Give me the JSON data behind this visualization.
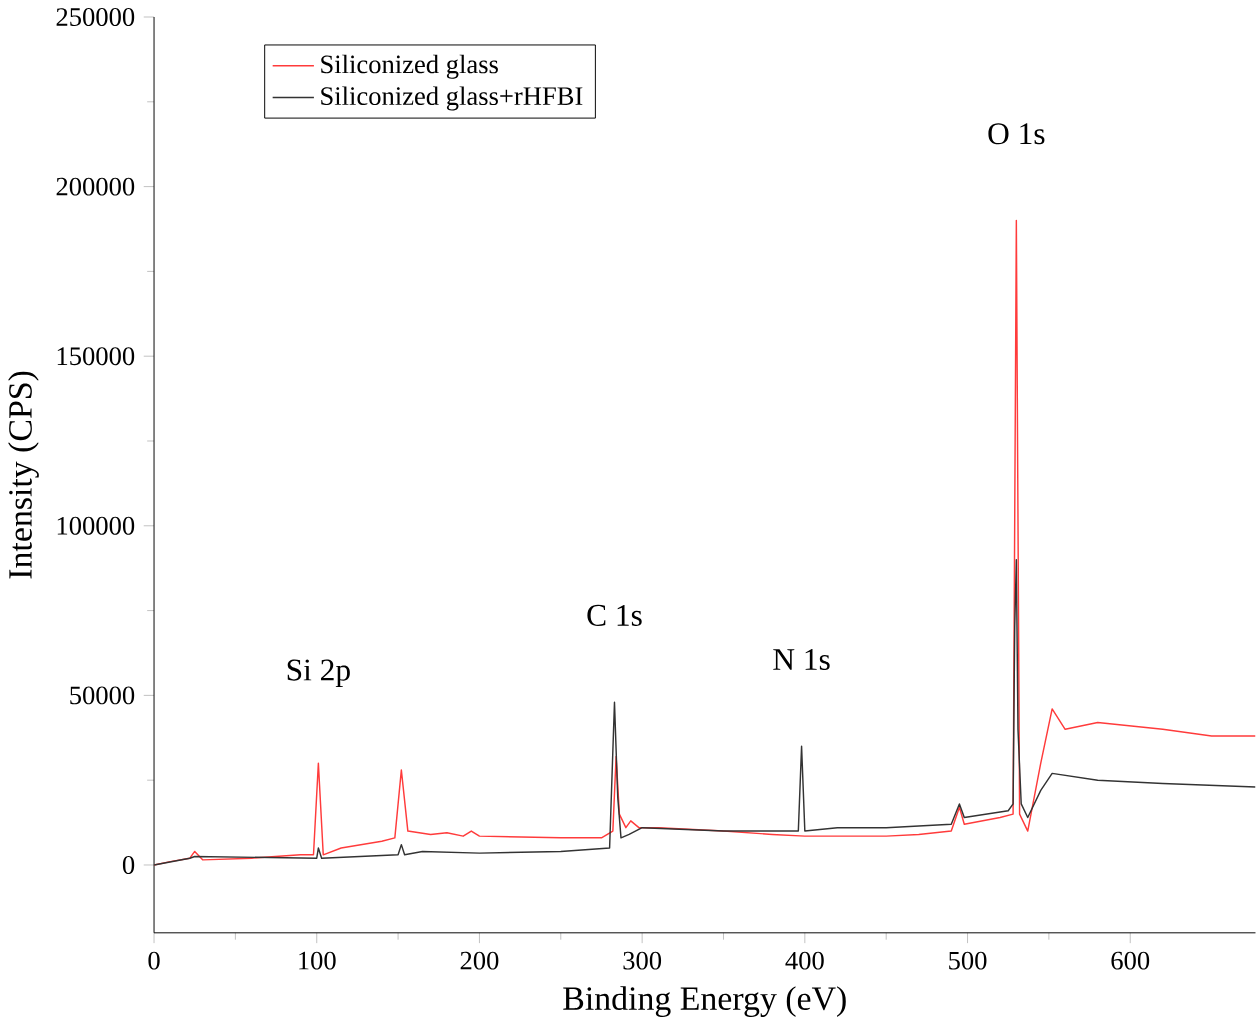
{
  "chart_data": {
    "type": "line",
    "xlabel": "Binding Energy (eV)",
    "ylabel": "Intensity (CPS)",
    "xlim": [
      0,
      677
    ],
    "ylim": [
      -20000,
      250000
    ],
    "xticks": [
      0,
      100,
      200,
      300,
      400,
      500,
      600
    ],
    "yticks": [
      0,
      50000,
      100000,
      150000,
      200000,
      250000
    ],
    "legend": "top left",
    "grid": false,
    "marker": "none",
    "line_style": "solid",
    "annotations": [
      {
        "text": "Si 2p",
        "x": 101,
        "y": 30000
      },
      {
        "text": "C 1s",
        "x": 283,
        "y": 48000
      },
      {
        "text": "N 1s",
        "x": 398,
        "y": 35000
      },
      {
        "text": "O 1s",
        "x": 530,
        "y": 190000
      }
    ],
    "series": [
      {
        "name": "Siliconized glass",
        "color": "#ff3b3b",
        "x": [
          0,
          10,
          22,
          25,
          30,
          60,
          90,
          98,
          101,
          104,
          115,
          140,
          148,
          152,
          156,
          170,
          180,
          190,
          195,
          200,
          250,
          275,
          282,
          284,
          286,
          290,
          293,
          298,
          310,
          350,
          380,
          400,
          450,
          470,
          490,
          495,
          498,
          520,
          528,
          530,
          532,
          537,
          545,
          552,
          560,
          580,
          600,
          620,
          650,
          677
        ],
        "values": [
          0,
          1000,
          2000,
          4000,
          1500,
          2000,
          3000,
          3000,
          30000,
          3000,
          5000,
          7000,
          8000,
          28000,
          10000,
          9000,
          9500,
          8500,
          10000,
          8500,
          8000,
          8000,
          10000,
          32000,
          15000,
          11000,
          13000,
          11000,
          11000,
          10000,
          9000,
          8500,
          8500,
          9000,
          10000,
          17000,
          12000,
          14000,
          15000,
          190000,
          15000,
          10000,
          30000,
          46000,
          40000,
          42000,
          41000,
          40000,
          38000,
          38000
        ]
      },
      {
        "name": "Siliconized glass+rHFBI",
        "color": "#333333",
        "x": [
          0,
          22,
          25,
          100,
          101,
          103,
          150,
          152,
          154,
          165,
          200,
          250,
          280,
          283,
          285,
          287,
          292,
          300,
          350,
          396,
          398,
          400,
          420,
          450,
          490,
          495,
          498,
          525,
          528,
          529,
          530,
          531,
          533,
          537,
          545,
          552,
          580,
          620,
          677
        ],
        "values": [
          0,
          2000,
          2500,
          2000,
          5000,
          2000,
          3000,
          6000,
          3000,
          4000,
          3500,
          4000,
          5000,
          48000,
          20000,
          8000,
          9000,
          11000,
          10000,
          10000,
          35000,
          10000,
          11000,
          11000,
          12000,
          18000,
          14000,
          16000,
          18000,
          70000,
          90000,
          40000,
          18000,
          14000,
          22000,
          27000,
          25000,
          24000,
          23000
        ]
      }
    ]
  }
}
